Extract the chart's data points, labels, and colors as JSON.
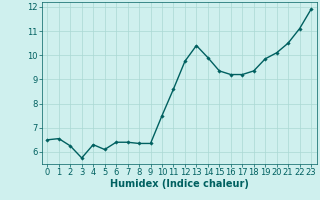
{
  "title": "",
  "xlabel": "Humidex (Indice chaleur)",
  "ylabel": "",
  "x_values": [
    0,
    1,
    2,
    3,
    4,
    5,
    6,
    7,
    8,
    9,
    10,
    11,
    12,
    13,
    14,
    15,
    16,
    17,
    18,
    19,
    20,
    21,
    22,
    23
  ],
  "y_values": [
    6.5,
    6.55,
    6.25,
    5.75,
    6.3,
    6.1,
    6.4,
    6.4,
    6.35,
    6.35,
    7.5,
    8.6,
    9.75,
    10.4,
    9.9,
    9.35,
    9.2,
    9.2,
    9.35,
    9.85,
    10.1,
    10.5,
    11.1,
    11.9
  ],
  "ylim": [
    5.5,
    12.2
  ],
  "xlim": [
    -0.5,
    23.5
  ],
  "yticks": [
    6,
    7,
    8,
    9,
    10,
    11,
    12
  ],
  "xticks": [
    0,
    1,
    2,
    3,
    4,
    5,
    6,
    7,
    8,
    9,
    10,
    11,
    12,
    13,
    14,
    15,
    16,
    17,
    18,
    19,
    20,
    21,
    22,
    23
  ],
  "line_color": "#006060",
  "marker": "D",
  "marker_size": 1.8,
  "bg_color": "#cff0ee",
  "grid_color": "#aad8d4",
  "line_width": 1.0,
  "tick_label_size": 6,
  "xlabel_size": 7
}
